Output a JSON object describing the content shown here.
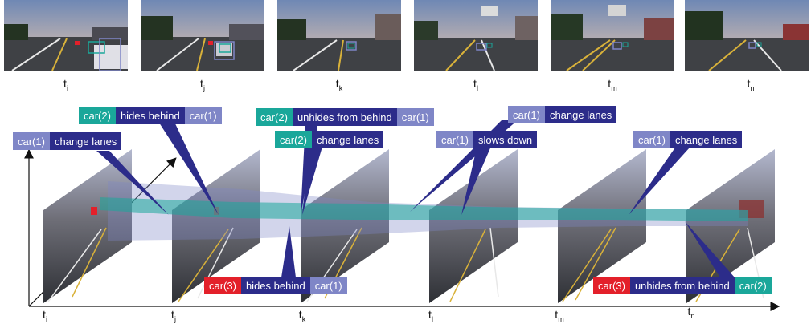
{
  "time_labels": [
    {
      "base": "t",
      "sub": "i"
    },
    {
      "base": "t",
      "sub": "j"
    },
    {
      "base": "t",
      "sub": "k"
    },
    {
      "base": "t",
      "sub": "l"
    },
    {
      "base": "t",
      "sub": "m"
    },
    {
      "base": "t",
      "sub": "n"
    }
  ],
  "events": [
    {
      "subject": "car(2)",
      "subject_color": "teal",
      "action": "hides behind",
      "object": "car(1)",
      "object_color": "lavender"
    },
    {
      "subject": "car(1)",
      "subject_color": "lavender",
      "action": "change lanes",
      "object": "",
      "object_color": ""
    },
    {
      "subject": "car(2)",
      "subject_color": "teal",
      "action": "unhides from behind",
      "object": "car(1)",
      "object_color": "lavender"
    },
    {
      "subject": "car(2)",
      "subject_color": "teal",
      "action": "change lanes",
      "object": "",
      "object_color": ""
    },
    {
      "subject": "car(1)",
      "subject_color": "lavender",
      "action": "change lanes",
      "object": "",
      "object_color": ""
    },
    {
      "subject": "car(1)",
      "subject_color": "lavender",
      "action": "slows down",
      "object": "",
      "object_color": ""
    },
    {
      "subject": "car(1)",
      "subject_color": "lavender",
      "action": "change lanes",
      "object": "",
      "object_color": ""
    },
    {
      "subject": "car(3)",
      "subject_color": "red",
      "action": "hides behind",
      "object": "car(1)",
      "object_color": "lavender"
    },
    {
      "subject": "car(3)",
      "subject_color": "red",
      "action": "unhides from behind",
      "object": "car(2)",
      "object_color": "teal"
    }
  ],
  "colors": {
    "teal": "#1aa79a",
    "lavender": "#7f86c7",
    "navy": "#2c2c8a",
    "red": "#e3202a"
  }
}
